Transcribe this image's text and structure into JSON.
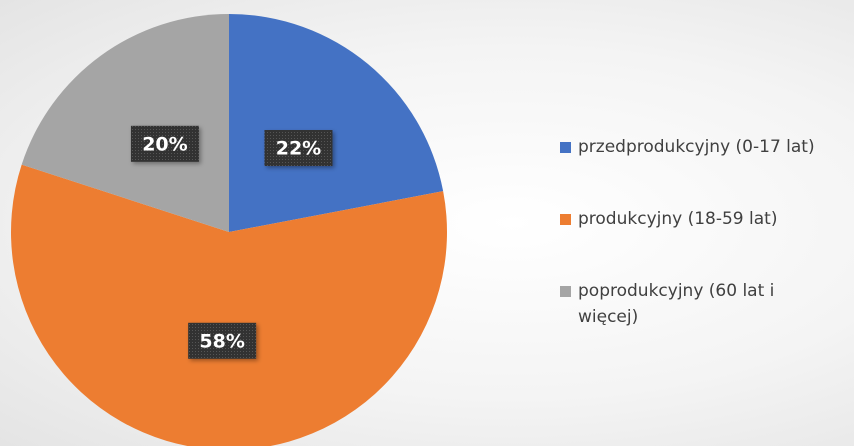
{
  "chart_data": {
    "type": "pie",
    "categories": [
      "przedprodukcyjny (0-17 lat)",
      "produkcyjny (18-59 lat)",
      "poprodukcyjny (60 lat i więcej)"
    ],
    "values": [
      22,
      58,
      20
    ],
    "value_labels": [
      "22%",
      "58%",
      "20%"
    ],
    "colors": [
      "#4472c4",
      "#ed7d31",
      "#a5a5a5"
    ],
    "legend": "right"
  }
}
